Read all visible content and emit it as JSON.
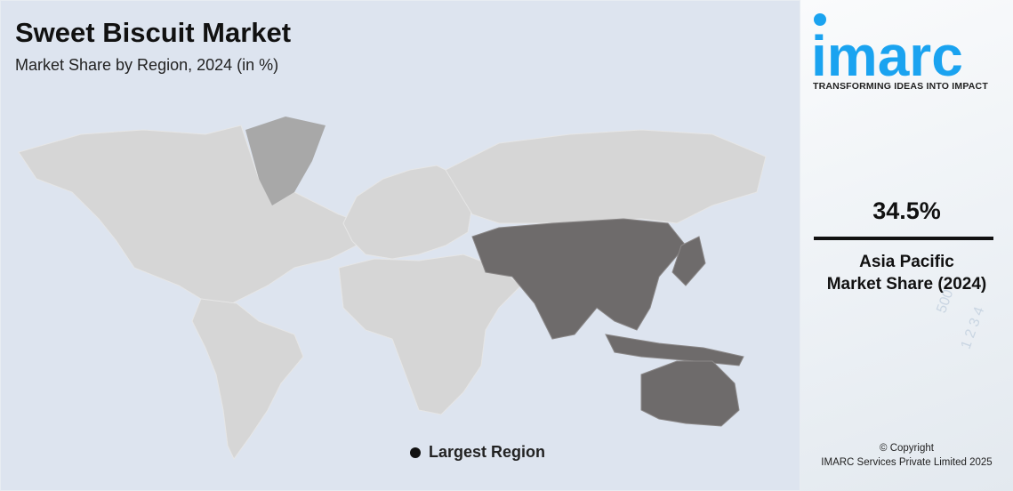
{
  "header": {
    "title": "Sweet Biscuit Market",
    "subtitle": "Market Share by Region, 2024 (in %)"
  },
  "legend": {
    "label": "Largest Region",
    "marker_color": "#111111"
  },
  "map": {
    "highlighted_region": "Asia Pacific",
    "colors": {
      "highlight": "#6e6b6b",
      "other": "#d6d6d6",
      "greenland": "#a8a8a8",
      "background": "#dde4ef"
    }
  },
  "sidebar": {
    "logo_text": "imarc",
    "logo_color": "#1aa3f0",
    "tagline": "TRANSFORMING IDEAS INTO IMPACT",
    "value": "34.5%",
    "region": "Asia Pacific",
    "metric": "Market Share (2024)",
    "copyright": "© Copyright",
    "company": "IMARC Services Private Limited 2025"
  }
}
